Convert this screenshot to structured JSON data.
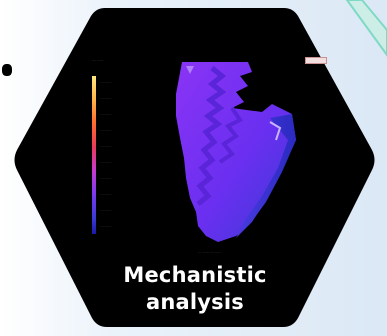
{
  "badge": {
    "title_line1": "Mechanistic",
    "title_line2": "analysis"
  },
  "colors": {
    "hexagon": "#000000",
    "background": "#dbe8f5",
    "accent_teal": "#7fd9c4",
    "plot_purple": "#7b2ff7",
    "plot_blue": "#3a3ad6",
    "title_text": "#ffffff"
  },
  "legend": {
    "gradient": [
      "#ffe680",
      "#ff9a3c",
      "#ff4d2e",
      "#e23a70",
      "#c23ad6",
      "#7a3af0",
      "#3a3ad6",
      "#1a1aa8"
    ]
  }
}
